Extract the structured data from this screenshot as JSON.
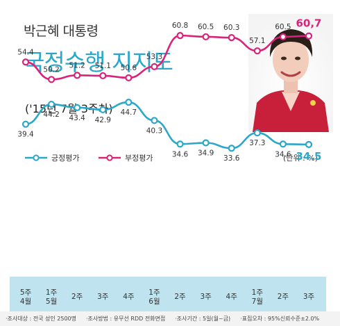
{
  "header": {
    "pretitle": "박근혜 대통령",
    "title": "국정수행 지지도",
    "subtitle": "('15년 7월 3주차)"
  },
  "legend": {
    "positive": "긍정평가",
    "negative": "부정평가",
    "unit": "(단위 : %)"
  },
  "colors": {
    "positive": "#2ba7c9",
    "negative": "#d9237a",
    "axis_band": "#bfe3ef"
  },
  "chart_data": {
    "type": "line",
    "categories": [
      "5주 4월",
      "1주 5월",
      "2주",
      "3주",
      "4주",
      "1주 6월",
      "2주",
      "3주",
      "4주",
      "1주 7월",
      "2주",
      "3주"
    ],
    "x_tick_lines": [
      [
        "5주",
        "4월"
      ],
      [
        "1주",
        "5월"
      ],
      [
        "2주"
      ],
      [
        "3주"
      ],
      [
        "4주"
      ],
      [
        "1주",
        "6월"
      ],
      [
        "2주"
      ],
      [
        "3주"
      ],
      [
        "4주"
      ],
      [
        "1주",
        "7월"
      ],
      [
        "2주"
      ],
      [
        "3주"
      ]
    ],
    "series": [
      {
        "name": "부정평가",
        "values": [
          54.4,
          50.2,
          51.2,
          51.1,
          50.6,
          53.3,
          60.8,
          60.5,
          60.3,
          57.1,
          60.5,
          60.7
        ]
      },
      {
        "name": "긍정평가",
        "values": [
          39.4,
          44.2,
          43.4,
          42.9,
          44.7,
          40.3,
          34.6,
          34.9,
          33.6,
          37.3,
          34.6,
          34.5
        ]
      }
    ],
    "value_labels": {
      "부정평가": [
        "54.4",
        "50.2",
        "51.2",
        "51.1",
        "50.6",
        "53.3",
        "60.8",
        "60.5",
        "60.3",
        "57.1",
        "60.5",
        "60,7"
      ],
      "긍정평가": [
        "39.4",
        "44.2",
        "43.4",
        "42.9",
        "44.7",
        "40.3",
        "34.6",
        "34.9",
        "33.6",
        "37.3",
        "34.6",
        "34.5"
      ]
    },
    "ylim": [
      30,
      65
    ],
    "grid": false,
    "legend_placement": "top-left"
  },
  "footnote": {
    "items": [
      "·조사대상 : 전국 성인 2500명",
      "·조사방법 : 유무선 RDD 전화면접",
      "·조사기간 : 5일(월~금)",
      "·표집오차 : 95%신뢰수준±2.0%"
    ]
  }
}
